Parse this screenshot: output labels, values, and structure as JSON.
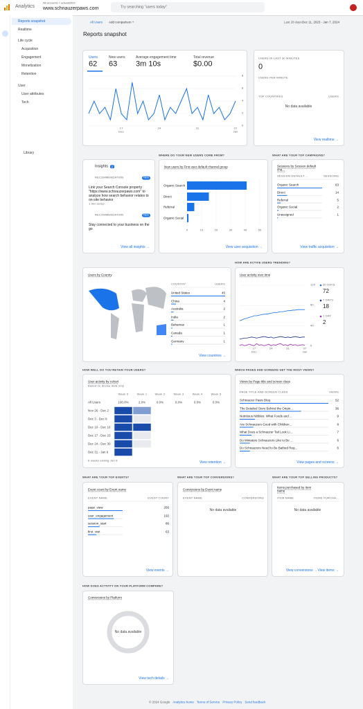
{
  "header": {
    "product": "Analytics",
    "breadcrumb": "All accounts > adwalt2023",
    "property": "www.schnauzerpaws.com",
    "search_placeholder": "Try searching \"users today\""
  },
  "sidebar": {
    "items": [
      "Reports snapshot",
      "Realtime"
    ],
    "sections": [
      {
        "title": "Life cycle",
        "items": [
          "Acquisition",
          "Engagement",
          "Monetization",
          "Retention"
        ]
      },
      {
        "title": "User",
        "items": [
          "User attributes",
          "Tech"
        ]
      }
    ],
    "library": "Library"
  },
  "toolbar": {
    "segment": "All Users",
    "add_comparison": "Add comparison +",
    "range_label": "Last 28 days",
    "range": "Dec 11, 2023 - Jan 7, 2024"
  },
  "page_title": "Reports snapshot",
  "overview": {
    "metrics": [
      {
        "label": "Users",
        "value": 62
      },
      {
        "label": "New users",
        "value": 63
      },
      {
        "label": "Average engagement time",
        "value": "3m 10s"
      },
      {
        "label": "Total revenue",
        "value": "$0.00"
      }
    ],
    "chart": {
      "type": "line",
      "color": "#1a73e8",
      "values": [
        2,
        4,
        2,
        3,
        1,
        6,
        2,
        1,
        7,
        2,
        4,
        1,
        2,
        5,
        1,
        3,
        2,
        4,
        6,
        2,
        3,
        1,
        5,
        2,
        3,
        1,
        2,
        4
      ],
      "ylim": [
        0,
        8
      ],
      "yticks": [
        0,
        2,
        4,
        6,
        8
      ],
      "xticks": [
        {
          "value": 6,
          "label": "17"
        },
        {
          "value": 13,
          "label": "24"
        },
        {
          "value": 20,
          "label": "31"
        },
        {
          "value": 27,
          "label": "07"
        }
      ],
      "xtick_months": [
        {
          "value": 6,
          "label": "Dec"
        },
        {
          "value": 27,
          "label": "Jan"
        }
      ]
    }
  },
  "realtime": {
    "title": "USERS IN LAST 30 MINUTES",
    "value": 0,
    "subtitle": "USERS PER MINUTE",
    "columns": [
      "TOP COUNTRIES",
      "USERS"
    ],
    "empty": "No data available",
    "link": "View realtime →"
  },
  "sections": {
    "new_users": "WHERE DO YOUR NEW USERS COME FROM?",
    "campaigns": "WHAT ARE YOUR TOP CAMPAIGNS?",
    "active": "HOW ARE ACTIVE USERS TRENDING?",
    "retain": "HOW WELL DO YOU RETAIN YOUR USERS?",
    "pages": "WHICH PAGES AND SCREENS GET THE MOST VIEWS?",
    "events": "WHAT ARE YOUR TOP EVENTS?",
    "conversions": "WHAT ARE YOUR TOP CONVERSIONS?",
    "products": "WHAT ARE YOUR TOP SELLING PRODUCTS?",
    "platform": "HOW DOES ACTIVITY ON YOUR PLATFORM COMPARE?"
  },
  "insights": {
    "title": "Insights",
    "count": 2,
    "cards": [
      {
        "kind": "RECOMMENDATION",
        "badge": "New",
        "text": "Link your Search Console property \"https://www.schnauzerpaws.com\" to analyze how search behavior relates to on-site behavior",
        "note": "1 min setup"
      },
      {
        "kind": "RECOMMENDATION",
        "badge": "New",
        "text": "Stay connected to your business on the go"
      }
    ],
    "link": "View all insights →"
  },
  "acquisition": {
    "title": "New users by First user default channel group",
    "chart": {
      "type": "bar",
      "orientation": "horizontal",
      "color": "#1a73e8",
      "categories": [
        "Organic Search",
        "Direct",
        "Referral",
        "Organic Social"
      ],
      "values": [
        41,
        15,
        5,
        1
      ],
      "xlim": [
        0,
        50
      ],
      "xticks": [
        0,
        10,
        20,
        30,
        40,
        50
      ],
      "grid": true
    },
    "link": "View user acquisition →"
  },
  "campaigns": {
    "title": "Sessions by Session default cha...",
    "columns": [
      "SESSION DEFAULT ...",
      "SESSIONS"
    ],
    "rows": [
      [
        "Organic Search",
        63
      ],
      [
        "Direct",
        14
      ],
      [
        "Referral",
        5
      ],
      [
        "Organic Social",
        2
      ],
      [
        "Unassigned",
        1
      ]
    ],
    "link": "View traffic acquisition →"
  },
  "countries": {
    "title": "Users by Country",
    "columns": [
      "COUNTRY",
      "USERS"
    ],
    "rows": [
      [
        "United States",
        45
      ],
      [
        "China",
        4
      ],
      [
        "Australia",
        2
      ],
      [
        "India",
        2
      ],
      [
        "Bahamas",
        1
      ],
      [
        "Canada",
        1
      ],
      [
        "Germany",
        1
      ]
    ],
    "link": "View countries →"
  },
  "activity": {
    "title": "User activity over time",
    "chart": {
      "type": "line",
      "x_count": 28,
      "ylim": [
        0,
        120
      ],
      "yticks": [
        0,
        40,
        80,
        120
      ],
      "xticks": [
        {
          "value": 6,
          "label": "17"
        },
        {
          "value": 13,
          "label": "24"
        },
        {
          "value": 20,
          "label": "31"
        },
        {
          "value": 27,
          "label": "07"
        }
      ],
      "xtick_months": [
        {
          "value": 6,
          "label": "Dec"
        },
        {
          "value": 27,
          "label": "Jan"
        }
      ],
      "series": [
        {
          "name": "30 DAYS",
          "latest": 72,
          "color": "#1a73e8",
          "values": [
            50,
            52,
            54,
            55,
            57,
            58,
            60,
            60,
            61,
            62,
            63,
            63,
            64,
            65,
            66,
            66,
            67,
            68,
            68,
            69,
            70,
            70,
            71,
            71,
            72,
            72,
            72,
            72
          ]
        },
        {
          "name": "7 DAYS",
          "latest": 18,
          "color": "#1f2f8f",
          "values": [
            14,
            15,
            16,
            16,
            17,
            18,
            17,
            16,
            17,
            18,
            19,
            18,
            17,
            18,
            16,
            17,
            18,
            19,
            18,
            17,
            18,
            17,
            18,
            19,
            18,
            17,
            18,
            18
          ]
        },
        {
          "name": "1 DAY",
          "latest": 2,
          "color": "#9c27b0",
          "values": [
            2,
            3,
            1,
            2,
            4,
            2,
            1,
            5,
            2,
            3,
            1,
            2,
            4,
            1,
            3,
            2,
            4,
            5,
            2,
            3,
            1,
            4,
            2,
            3,
            1,
            2,
            3,
            2
          ]
        }
      ]
    }
  },
  "retention": {
    "title": "User activity by cohort",
    "subtitle": "Based on device data only",
    "columns": [
      "Week 0",
      "Week 1",
      "Week 2",
      "Week 3",
      "Week 4",
      "Week 5"
    ],
    "all_users": {
      "label": "All Users",
      "values": [
        "100.0%",
        "2.0%",
        "0.0%",
        "0.0%",
        "0.0%",
        "0.0%"
      ]
    },
    "cohorts": [
      {
        "label": "Nov 26 - Dec 2",
        "values": [
          100,
          35
        ]
      },
      {
        "label": "Dec 3 - Dec 9",
        "values": [
          100,
          0
        ]
      },
      {
        "label": "Dec 10 - Dec 16",
        "values": [
          100,
          100
        ]
      },
      {
        "label": "Dec 17 - Dec 23",
        "values": [
          100,
          0
        ]
      },
      {
        "label": "Dec 24 - Dec 30",
        "values": [
          100,
          0
        ]
      },
      {
        "label": "Dec 31 - Jan 6",
        "values": [
          100
        ]
      }
    ],
    "footnote": "6 weeks ending Jan 6",
    "link": "View retention →"
  },
  "pages": {
    "title": "Views by Page title and screen class",
    "columns": [
      "PAGE TITLE AND SCREEN CLASS",
      "VIEWS"
    ],
    "rows": [
      [
        "Schnauzer Paws Blog",
        52
      ],
      [
        "The Detailed Story Behind the Origin...",
        36
      ],
      [
        "Nutritious Nibbles: What Foods and ...",
        9
      ],
      [
        "Are Schnauzers Good with Children...",
        8
      ],
      [
        "What Does a Schnauzer Tail Look Li...",
        7
      ],
      [
        "Do Miniature Schnauzers Like to Be ...",
        6
      ],
      [
        "Do Schnauzers Need to Be Bathed Reg...",
        6
      ]
    ],
    "link": "View pages and screens →"
  },
  "events": {
    "title": "Event count by Event name",
    "columns": [
      "EVENT NAME",
      "EVENT COUNT"
    ],
    "rows": [
      [
        "page_view",
        256
      ],
      [
        "user_engagement",
        192
      ],
      [
        "session_start",
        86
      ],
      [
        "first_visit",
        63
      ]
    ],
    "link": "View events →"
  },
  "conversions": {
    "title": "Conversions by Event name",
    "columns": [
      "EVENT NAME",
      "CONVERSIONS"
    ],
    "empty": "No data available",
    "link": "View conversions →"
  },
  "products": {
    "title": "Items purchased by Item name",
    "columns": [
      "ITEM NAME",
      "ITEMS PURCHA..."
    ],
    "empty": "No data available",
    "link": "View items →"
  },
  "platform": {
    "title": "Conversions by Platform",
    "empty": "No data available",
    "link": "View tech details →"
  },
  "footer": [
    "© 2024 Google",
    "Analytics home",
    "Terms of Service",
    "Privacy Policy",
    "Send feedback"
  ]
}
